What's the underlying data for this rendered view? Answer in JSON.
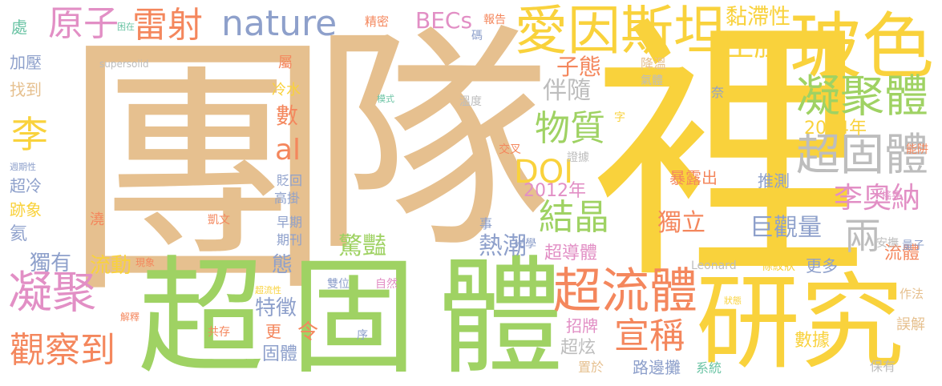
{
  "colors": {
    "tan": "#e6c08f",
    "yellow": "#f9d23c",
    "green": "#9fd263",
    "pink": "#e28fc5",
    "orange": "#f4875d",
    "slate": "#8ea0cb",
    "teal": "#6cc4a5",
    "gray": "#bdbdbd",
    "olive": "#c9b07c",
    "lavender": "#b8a6d9"
  },
  "words": [
    {
      "text": "團",
      "color": "#e6c08f"
    },
    {
      "text": "隊",
      "color": "#e6c08f"
    },
    {
      "text": "裡",
      "color": "#f9d23c"
    },
    {
      "text": "超",
      "color": "#9fd263"
    },
    {
      "text": "固",
      "color": "#9fd263"
    },
    {
      "text": "體",
      "color": "#9fd263"
    },
    {
      "text": "研究",
      "color": "#f9d23c"
    },
    {
      "text": "玻色",
      "color": "#f9d23c"
    },
    {
      "text": "愛因斯坦",
      "color": "#f9d23c"
    },
    {
      "text": "nature",
      "color": "#8ea0cb"
    },
    {
      "text": "原子",
      "color": "#e28fc5"
    },
    {
      "text": "雷射",
      "color": "#f4875d"
    },
    {
      "text": "凝聚體",
      "color": "#9fd263"
    },
    {
      "text": "超固體",
      "color": "#bdbdbd"
    },
    {
      "text": "超流體",
      "color": "#f4875d"
    },
    {
      "text": "凝聚",
      "color": "#e28fc5"
    },
    {
      "text": "觀察到",
      "color": "#f4875d"
    },
    {
      "text": "物質",
      "color": "#9fd263"
    },
    {
      "text": "結晶",
      "color": "#9fd263"
    },
    {
      "text": "宣稱",
      "color": "#f4875d"
    },
    {
      "text": "李奧納",
      "color": "#e28fc5"
    },
    {
      "text": "空腔",
      "color": "#f9d23c"
    },
    {
      "text": "黏滯性",
      "color": "#f9d23c"
    },
    {
      "text": "子態",
      "color": "#f4875d"
    },
    {
      "text": "DOI",
      "color": "#f9d23c"
    },
    {
      "text": "李",
      "color": "#f9d23c"
    },
    {
      "text": "al",
      "color": "#f4875d"
    },
    {
      "text": "數",
      "color": "#f4875d"
    },
    {
      "text": "伴隨",
      "color": "#bdbdbd"
    },
    {
      "text": "BECs",
      "color": "#e28fc5"
    },
    {
      "text": "2004年",
      "color": "#f9d23c"
    },
    {
      "text": "2012年",
      "color": "#e28fc5"
    },
    {
      "text": "巨觀量",
      "color": "#8ea0cb"
    },
    {
      "text": "獨立",
      "color": "#f4875d"
    },
    {
      "text": "兩",
      "color": "#bdbdbd"
    },
    {
      "text": "流體",
      "color": "#f4875d"
    },
    {
      "text": "驚豔",
      "color": "#9fd263"
    },
    {
      "text": "超導體",
      "color": "#e28fc5"
    },
    {
      "text": "熱潮",
      "color": "#8ea0cb"
    },
    {
      "text": "流動",
      "color": "#f9d23c"
    },
    {
      "text": "獨有",
      "color": "#8ea0cb"
    },
    {
      "text": "特徵",
      "color": "#8ea0cb"
    },
    {
      "text": "態",
      "color": "#8ea0cb"
    },
    {
      "text": "超炫",
      "color": "#bdbdbd"
    },
    {
      "text": "令",
      "color": "#f4875d"
    },
    {
      "text": "更",
      "color": "#f4875d"
    },
    {
      "text": "固體",
      "color": "#8ea0cb"
    },
    {
      "text": "招牌",
      "color": "#e28fc5"
    },
    {
      "text": "置於",
      "color": "#e6c08f"
    },
    {
      "text": "路邊攤",
      "color": "#8ea0cb"
    },
    {
      "text": "系統",
      "color": "#6cc4a5"
    },
    {
      "text": "數據",
      "color": "#f9d23c"
    },
    {
      "text": "保有",
      "color": "#bdbdbd"
    },
    {
      "text": "誤解",
      "color": "#e6c08f"
    },
    {
      "text": "作法",
      "color": "#e6c08f"
    },
    {
      "text": "量子",
      "color": "#8ea0cb"
    },
    {
      "text": "安撫",
      "color": "#bdbdbd"
    },
    {
      "text": "搖晃",
      "color": "#e28fc5"
    },
    {
      "text": "能阱",
      "color": "#f4875d"
    },
    {
      "text": "更多",
      "color": "#8ea0cb"
    },
    {
      "text": "條紋狀",
      "color": "#f9d23c"
    },
    {
      "text": "Leonard",
      "color": "#bdbdbd"
    },
    {
      "text": "推測",
      "color": "#8ea0cb"
    },
    {
      "text": "暴露出",
      "color": "#f4875d"
    },
    {
      "text": "證據",
      "color": "#bdbdbd"
    },
    {
      "text": "奈",
      "color": "#8ea0cb"
    },
    {
      "text": "Li",
      "color": "#f9d23c"
    },
    {
      "text": "降溫",
      "color": "#e6c08f"
    },
    {
      "text": "氣體",
      "color": "#bdbdbd"
    },
    {
      "text": "溫度",
      "color": "#bdbdbd"
    },
    {
      "text": "字",
      "color": "#f9d23c"
    },
    {
      "text": "交叉",
      "color": "#f4875d"
    },
    {
      "text": "事",
      "color": "#8ea0cb"
    },
    {
      "text": "光學",
      "color": "#8ea0cb"
    },
    {
      "text": "雙位",
      "color": "#8ea0cb"
    },
    {
      "text": "自然",
      "color": "#e28fc5"
    },
    {
      "text": "序",
      "color": "#8ea0cb"
    },
    {
      "text": "共存",
      "color": "#f4875d"
    },
    {
      "text": "超流性",
      "color": "#f9d23c"
    },
    {
      "text": "現象",
      "color": "#f4875d"
    },
    {
      "text": "解釋",
      "color": "#f4875d"
    },
    {
      "text": "狀態",
      "color": "#f9d23c"
    },
    {
      "text": "期刊",
      "color": "#8ea0cb"
    },
    {
      "text": "早期",
      "color": "#8ea0cb"
    },
    {
      "text": "凱文",
      "color": "#f4875d"
    },
    {
      "text": "澆",
      "color": "#f4875d"
    },
    {
      "text": "高掛",
      "color": "#8ea0cb"
    },
    {
      "text": "貶回",
      "color": "#8ea0cb"
    },
    {
      "text": "冷水",
      "color": "#f9d23c"
    },
    {
      "text": "屬",
      "color": "#f4875d"
    },
    {
      "text": "模式",
      "color": "#6cc4a5"
    },
    {
      "text": "碼",
      "color": "#8ea0cb"
    },
    {
      "text": "報告",
      "color": "#f4875d"
    },
    {
      "text": "精密",
      "color": "#f4875d"
    },
    {
      "text": "困在",
      "color": "#6cc4a5"
    },
    {
      "text": "處",
      "color": "#6cc4a5"
    },
    {
      "text": "加壓",
      "color": "#8ea0cb"
    },
    {
      "text": "找到",
      "color": "#e6c08f"
    },
    {
      "text": "supersolid",
      "color": "#bdbdbd"
    },
    {
      "text": "週期性",
      "color": "#8ea0cb"
    },
    {
      "text": "超冷",
      "color": "#8ea0cb"
    },
    {
      "text": "跡象",
      "color": "#f9d23c"
    },
    {
      "text": "氦",
      "color": "#8ea0cb"
    }
  ]
}
